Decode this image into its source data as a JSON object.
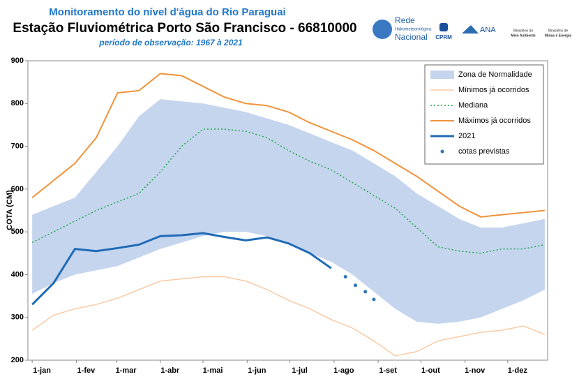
{
  "header": {
    "title": "Monitoramento do nível d'água do Rio Paraguai",
    "subtitle": "Estação Fluviométrica Porto São Francisco - 66810000",
    "period": "período de observação: 1967 à 2021"
  },
  "logos": {
    "rede": [
      "Rede",
      "Hidrometeorológica",
      "Nacional"
    ],
    "cprm": "CPRM",
    "ana": "ANA",
    "mma": [
      "Ministério do",
      "Meio Ambiente"
    ],
    "mme": [
      "Ministério de",
      "Minas e Energia"
    ]
  },
  "chart_data": {
    "type": "line",
    "y_label": "COTA (CM)",
    "x": [
      0,
      15,
      30,
      45,
      60,
      75,
      90,
      105,
      120,
      135,
      150,
      165,
      180,
      195,
      210,
      225,
      240,
      255,
      270,
      285,
      300,
      315,
      330,
      345,
      360
    ],
    "xlim": [
      -3,
      362
    ],
    "xticks": [
      {
        "value": 0,
        "label": "1-jan"
      },
      {
        "value": 31,
        "label": "1-fev"
      },
      {
        "value": 59,
        "label": "1-mar"
      },
      {
        "value": 90,
        "label": "1-abr"
      },
      {
        "value": 120,
        "label": "1-mai"
      },
      {
        "value": 151,
        "label": "1-jun"
      },
      {
        "value": 181,
        "label": "1-jul"
      },
      {
        "value": 212,
        "label": "1-ago"
      },
      {
        "value": 243,
        "label": "1-set"
      },
      {
        "value": 273,
        "label": "1-out"
      },
      {
        "value": 304,
        "label": "1-nov"
      },
      {
        "value": 334,
        "label": "1-dez"
      }
    ],
    "ylim": [
      200,
      900
    ],
    "yticks": [
      200,
      300,
      400,
      500,
      600,
      700,
      800,
      900
    ],
    "grid": false,
    "legend": "top-right",
    "series": [
      {
        "name": "Zona de Normalidade",
        "kind": "band",
        "color": "#c5d5ee",
        "values": [
          540,
          560,
          580,
          640,
          700,
          770,
          810,
          805,
          800,
          790,
          780,
          765,
          750,
          730,
          710,
          690,
          660,
          630,
          590,
          560,
          530,
          510,
          510,
          520,
          530
        ],
        "lower": [
          355,
          380,
          400,
          410,
          420,
          440,
          460,
          475,
          490,
          500,
          500,
          490,
          470,
          450,
          430,
          400,
          360,
          320,
          290,
          285,
          290,
          300,
          320,
          340,
          365
        ]
      },
      {
        "name": "Mínimos já ocorridos",
        "kind": "line",
        "color": "#f9cba6",
        "width": 1.5,
        "values": [
          270,
          305,
          320,
          330,
          345,
          365,
          385,
          390,
          395,
          395,
          385,
          365,
          340,
          320,
          295,
          275,
          245,
          210,
          220,
          245,
          255,
          265,
          270,
          280,
          260
        ]
      },
      {
        "name": "Mediana",
        "kind": "line",
        "color": "#1fa64a",
        "width": 1.5,
        "dash": "2,3",
        "values": [
          475,
          500,
          525,
          550,
          570,
          590,
          640,
          700,
          740,
          740,
          735,
          720,
          690,
          665,
          645,
          615,
          585,
          555,
          510,
          465,
          455,
          450,
          460,
          460,
          470
        ]
      },
      {
        "name": "Máximos já ocorridos",
        "kind": "line",
        "color": "#f0923a",
        "width": 2,
        "values": [
          580,
          620,
          660,
          720,
          825,
          830,
          870,
          865,
          840,
          815,
          800,
          795,
          780,
          755,
          735,
          715,
          690,
          660,
          630,
          595,
          560,
          535,
          540,
          545,
          550
        ]
      },
      {
        "name": "2021",
        "kind": "line",
        "color": "#1f6bb5",
        "width": 3,
        "values": [
          330,
          380,
          460,
          455,
          462,
          470,
          490,
          492,
          497,
          488,
          480,
          487,
          473,
          450,
          415,
          null,
          null,
          null,
          null,
          null,
          null,
          null,
          null,
          null,
          null
        ]
      },
      {
        "name": "cotas previstas",
        "kind": "points",
        "color": "#2e75b6",
        "x": [
          220,
          227,
          234,
          240
        ],
        "values": [
          395,
          375,
          360,
          342
        ]
      }
    ]
  }
}
